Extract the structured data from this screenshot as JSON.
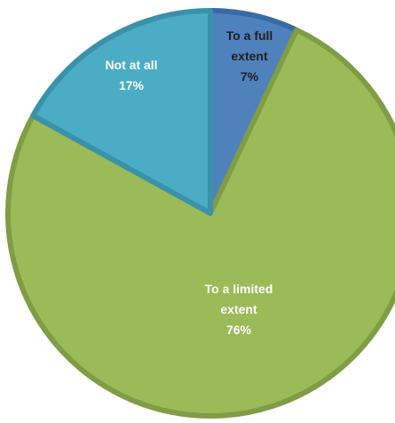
{
  "chart_data": {
    "type": "pie",
    "title": "",
    "slices": [
      {
        "label_lines": [
          "To a full",
          "extent"
        ],
        "value_label": "7%",
        "value": 7,
        "color": "#4f81bd",
        "border": "#3a6aa6",
        "text_color": "#1f1f1f"
      },
      {
        "label_lines": [
          "To a limited",
          "extent"
        ],
        "value_label": "76%",
        "value": 76,
        "color": "#9bbb59",
        "border": "#7f9d45",
        "text_color": "#ffffff"
      },
      {
        "label_lines": [
          "Not at all"
        ],
        "value_label": "17%",
        "value": 17,
        "color": "#4bacc6",
        "border": "#3a92aa",
        "text_color": "#ffffff"
      }
    ],
    "start": "top",
    "direction": "clockwise",
    "legend": "none"
  }
}
